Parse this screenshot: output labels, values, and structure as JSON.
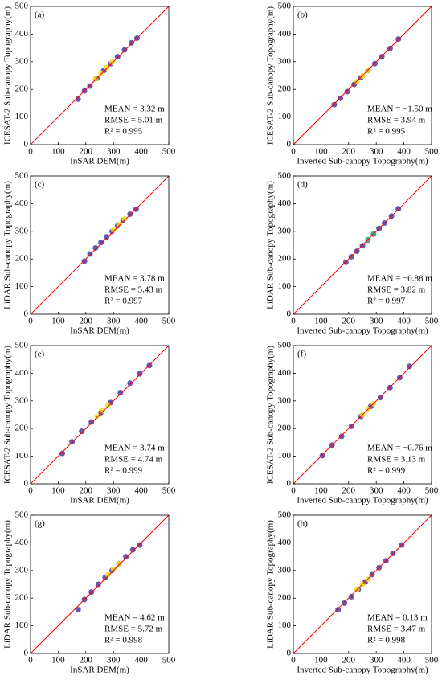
{
  "chart_data": [
    {
      "type": "scatter",
      "title": "(a)",
      "xlabel": "InSAR DEM(m)",
      "ylabel": "ICESAT-2 Sub-canopy Topography(m)",
      "xlim": [
        0,
        500
      ],
      "ylim": [
        0,
        500
      ],
      "xticks": [
        0,
        100,
        200,
        300,
        400,
        500
      ],
      "yticks": [
        0,
        100,
        200,
        300,
        400,
        500
      ],
      "annotations": [
        "MEAN = 3.32 m",
        "RMSE = 5.01 m",
        "R² = 0.995"
      ],
      "series": [
        {
          "color": "#4a3aa0",
          "x": [
            172,
            195,
            215,
            240,
            265,
            290,
            315,
            340,
            365,
            385
          ],
          "values": [
            165,
            195,
            212,
            240,
            268,
            293,
            318,
            343,
            368,
            385
          ]
        },
        {
          "color": "#f0e020",
          "x": [
            235,
            255,
            275,
            295
          ],
          "values": [
            238,
            258,
            279,
            298
          ]
        }
      ]
    },
    {
      "type": "scatter",
      "title": "(b)",
      "xlabel": "Inverted Sub-canopy Topography(m)",
      "ylabel": "ICESAT-2 Sub-canopy Topography(m)",
      "xlim": [
        0,
        500
      ],
      "ylim": [
        0,
        500
      ],
      "xticks": [
        0,
        100,
        200,
        300,
        400,
        500
      ],
      "yticks": [
        0,
        100,
        200,
        300,
        400,
        500
      ],
      "annotations": [
        "MEAN = −1.50 m",
        "RMSE = 3.94 m",
        "R² = 0.995"
      ],
      "series": [
        {
          "color": "#4a3aa0",
          "x": [
            148,
            170,
            195,
            220,
            245,
            270,
            295,
            320,
            350,
            380
          ],
          "values": [
            145,
            168,
            192,
            218,
            243,
            268,
            293,
            318,
            348,
            382
          ]
        },
        {
          "color": "#f0e020",
          "x": [
            230,
            250,
            270
          ],
          "values": [
            228,
            248,
            268
          ]
        }
      ]
    },
    {
      "type": "scatter",
      "title": "(c)",
      "xlabel": "InSAR DEM(m)",
      "ylabel": "LiDAR Sub-canopy Topography(m)",
      "xlim": [
        0,
        500
      ],
      "ylim": [
        0,
        500
      ],
      "xticks": [
        0,
        100,
        200,
        300,
        400,
        500
      ],
      "yticks": [
        0,
        100,
        200,
        300,
        400,
        500
      ],
      "annotations": [
        "MEAN = 3.78 m",
        "RMSE = 5.43 m",
        "R² = 0.997"
      ],
      "series": [
        {
          "color": "#4a3aa0",
          "x": [
            195,
            215,
            235,
            255,
            275,
            295,
            315,
            335,
            360,
            382
          ],
          "values": [
            192,
            218,
            240,
            260,
            280,
            300,
            320,
            340,
            362,
            380
          ]
        },
        {
          "color": "#f0e020",
          "x": [
            300,
            320,
            340
          ],
          "values": [
            305,
            325,
            345
          ]
        }
      ]
    },
    {
      "type": "scatter",
      "title": "(d)",
      "xlabel": "Inverted Sub-canopy Topography(m)",
      "ylabel": "LiDAR Sub-canopy Topography(m)",
      "xlim": [
        0,
        500
      ],
      "ylim": [
        0,
        500
      ],
      "xticks": [
        0,
        100,
        200,
        300,
        400,
        500
      ],
      "yticks": [
        0,
        100,
        200,
        300,
        400,
        500
      ],
      "annotations": [
        "MEAN = −0.88 m",
        "RMSE = 3.82 m",
        "R² = 0.997"
      ],
      "series": [
        {
          "color": "#4a3aa0",
          "x": [
            190,
            210,
            230,
            250,
            270,
            290,
            310,
            330,
            355,
            380
          ],
          "values": [
            188,
            208,
            228,
            248,
            268,
            290,
            310,
            330,
            355,
            382
          ]
        },
        {
          "color": "#3fbc73",
          "x": [
            270,
            290
          ],
          "values": [
            270,
            290
          ]
        }
      ]
    },
    {
      "type": "scatter",
      "title": "(e)",
      "xlabel": "InSAR DEM(m)",
      "ylabel": "ICESAT-2 Sub-canopy Topography(m)",
      "xlim": [
        0,
        500
      ],
      "ylim": [
        0,
        500
      ],
      "xticks": [
        0,
        100,
        200,
        300,
        400,
        500
      ],
      "yticks": [
        0,
        100,
        200,
        300,
        400,
        500
      ],
      "annotations": [
        "MEAN = 3.74 m",
        "RMSE = 4.74 m",
        "R² = 0.999"
      ],
      "series": [
        {
          "color": "#4a3aa0",
          "x": [
            115,
            150,
            185,
            220,
            255,
            290,
            325,
            360,
            395,
            430
          ],
          "values": [
            110,
            152,
            190,
            224,
            258,
            294,
            330,
            364,
            398,
            428
          ]
        },
        {
          "color": "#f0e020",
          "x": [
            240,
            260,
            280
          ],
          "values": [
            244,
            264,
            284
          ]
        }
      ]
    },
    {
      "type": "scatter",
      "title": "(f)",
      "xlabel": "Inverted Sub-canopy Topography(m)",
      "ylabel": "ICESAT-2 Sub-canopy Topography(m)",
      "xlim": [
        0,
        500
      ],
      "ylim": [
        0,
        500
      ],
      "xticks": [
        0,
        100,
        200,
        300,
        400,
        500
      ],
      "yticks": [
        0,
        100,
        200,
        300,
        400,
        500
      ],
      "annotations": [
        "MEAN = −0.76 m",
        "RMSE = 3.13 m",
        "R² = 0.999"
      ],
      "series": [
        {
          "color": "#4a3aa0",
          "x": [
            105,
            140,
            175,
            210,
            245,
            280,
            315,
            350,
            385,
            420
          ],
          "values": [
            102,
            140,
            172,
            208,
            244,
            280,
            312,
            348,
            384,
            425
          ]
        },
        {
          "color": "#f0e020",
          "x": [
            250,
            270,
            290
          ],
          "values": [
            250,
            270,
            290
          ]
        }
      ]
    },
    {
      "type": "scatter",
      "title": "(g)",
      "xlabel": "InSAR DEM(m)",
      "ylabel": "LiDAR Sub-canopy Topography(m)",
      "xlim": [
        0,
        500
      ],
      "ylim": [
        0,
        500
      ],
      "xticks": [
        0,
        100,
        200,
        300,
        400,
        500
      ],
      "yticks": [
        0,
        100,
        200,
        300,
        400,
        500
      ],
      "annotations": [
        "MEAN = 4.62 m",
        "RMSE = 5.72 m",
        "R² = 0.998"
      ],
      "series": [
        {
          "color": "#4a3aa0",
          "x": [
            172,
            195,
            220,
            245,
            270,
            295,
            320,
            345,
            370,
            395
          ],
          "values": [
            158,
            195,
            222,
            250,
            275,
            300,
            325,
            350,
            375,
            392
          ]
        },
        {
          "color": "#f0e020",
          "x": [
            280,
            300,
            320
          ],
          "values": [
            285,
            305,
            325
          ]
        }
      ]
    },
    {
      "type": "scatter",
      "title": "(h)",
      "xlabel": "Inverted Sub-canopy Topography(m)",
      "ylabel": "LiDAR Sub-canopy Topography(m)",
      "xlim": [
        0,
        500
      ],
      "ylim": [
        0,
        500
      ],
      "xticks": [
        0,
        100,
        200,
        300,
        400,
        500
      ],
      "yticks": [
        0,
        100,
        200,
        300,
        400,
        500
      ],
      "annotations": [
        "MEAN = 0.13 m",
        "RMSE = 3.47 m",
        "R² = 0.998"
      ],
      "series": [
        {
          "color": "#4a3aa0",
          "x": [
            162,
            185,
            210,
            235,
            260,
            285,
            310,
            335,
            360,
            392
          ],
          "values": [
            158,
            182,
            205,
            232,
            258,
            285,
            310,
            335,
            362,
            392
          ]
        },
        {
          "color": "#f0e020",
          "x": [
            230,
            250,
            270
          ],
          "values": [
            232,
            250,
            268
          ]
        }
      ]
    }
  ]
}
